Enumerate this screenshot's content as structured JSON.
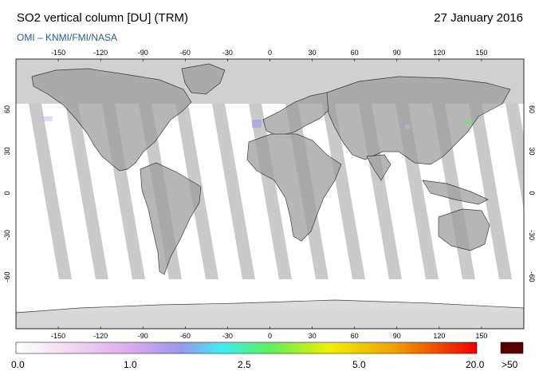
{
  "header": {
    "title": "SO2 vertical column [DU] (TRM)",
    "date": "27 January 2016",
    "source": "OMI  –  KNMI/FMI/NASA"
  },
  "map": {
    "lon_ticks": [
      "-150",
      "-120",
      "-90",
      "-60",
      "-30",
      "0",
      "30",
      "60",
      "90",
      "120",
      "150"
    ],
    "lat_ticks": [
      "60",
      "30",
      "0",
      "-30",
      "-60"
    ],
    "no_data_color": "#d0d0d0",
    "orbit_gap_color": "#bdbdbd"
  },
  "colorbar": {
    "labels": [
      "0.0",
      "1.0",
      "2.5",
      "5.0",
      "20.0",
      ">50"
    ],
    "colors": [
      "#ffffff",
      "#f2d8f2",
      "#d9a9ee",
      "#9898ee",
      "#3ef0f0",
      "#5cf05c",
      "#f0f000",
      "#f0a000",
      "#f00000"
    ],
    "overflow_color": "#5a0000"
  }
}
